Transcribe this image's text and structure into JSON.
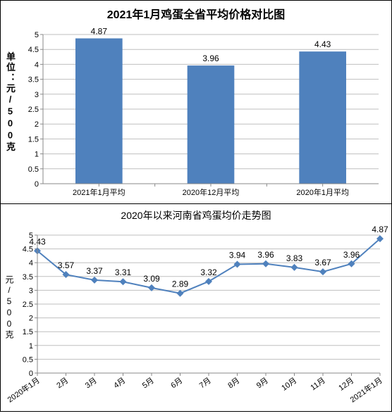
{
  "bar_chart": {
    "type": "bar",
    "title": "2021年1月鸡蛋全省平均价格对比图",
    "title_fontsize": 16,
    "ylabel": "单位：元/500克",
    "ylabel_fontsize": 13,
    "categories": [
      "2021年1月平均",
      "2020年12月平均",
      "2020年1月平均"
    ],
    "values": [
      4.87,
      3.96,
      4.43
    ],
    "bar_color": "#4f81bd",
    "ylim": [
      0,
      5
    ],
    "ytick_step": 0.5,
    "grid_color": "#bfbfbf",
    "axis_color": "#888888",
    "background": "#ffffff",
    "bar_width_ratio": 0.42,
    "value_label_fontsize": 12,
    "tick_fontsize": 11
  },
  "line_chart": {
    "type": "line",
    "title": "2020年以来河南省鸡蛋均价走势图",
    "title_fontsize": 14,
    "ylabel": "元/500克",
    "ylabel_fontsize": 12,
    "categories": [
      "2020年1月",
      "2月",
      "3月",
      "4月",
      "5月",
      "6月",
      "7月",
      "8月",
      "9月",
      "10月",
      "11月",
      "12月",
      "2021年1月"
    ],
    "values": [
      4.43,
      3.57,
      3.37,
      3.31,
      3.09,
      2.89,
      3.32,
      3.94,
      3.96,
      3.83,
      3.67,
      3.96,
      4.87
    ],
    "line_color": "#4f81bd",
    "marker_color": "#4f81bd",
    "marker_style": "diamond",
    "marker_size": 5,
    "line_width": 2,
    "ylim": [
      0,
      5
    ],
    "ytick_step": 0.5,
    "grid_color": "#bfbfbf",
    "axis_color": "#888888",
    "background": "#ffffff",
    "value_label_fontsize": 11,
    "tick_fontsize": 11,
    "xlabel_rotation": -35
  }
}
